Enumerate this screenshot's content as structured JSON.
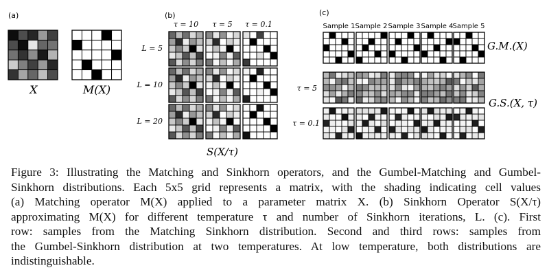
{
  "panels": {
    "a": {
      "label": "(a)",
      "captions": {
        "x": "X",
        "mx": "M(X)"
      },
      "x_matrix": [
        [
          0.95,
          0.7,
          0.85,
          0.4,
          0.75
        ],
        [
          0.7,
          0.95,
          0.1,
          0.6,
          0.55
        ],
        [
          0.55,
          0.8,
          0.45,
          0.9,
          0.3
        ],
        [
          0.2,
          0.5,
          0.75,
          0.4,
          0.85
        ],
        [
          0.8,
          0.35,
          0.6,
          0.25,
          0.7
        ]
      ],
      "mx_perm": [
        3,
        0,
        4,
        1,
        2
      ]
    },
    "b": {
      "label": "(b)",
      "tau_labels": [
        "τ = 10",
        "τ = 5",
        "τ = 0.1"
      ],
      "L_labels": [
        "L = 5",
        "L = 10",
        "L = 20"
      ],
      "bottom_label": "S(X/τ)",
      "tau_values": [
        10,
        5,
        0.1
      ],
      "L_values": [
        5,
        10,
        20
      ]
    },
    "c": {
      "label": "(c)",
      "sample_labels": [
        "Sample 1",
        "Sample 2",
        "Sample 3",
        "Sample 4",
        "Sample 5"
      ],
      "row_labels": [
        "",
        "τ = 5",
        "τ = 0.1"
      ],
      "gm_label": "G.M.(X)",
      "gs_label": "G.S.(X, τ)",
      "perms": [
        [
          1,
          3,
          0,
          4,
          2
        ],
        [
          4,
          2,
          1,
          3,
          0
        ],
        [
          3,
          1,
          4,
          0,
          2
        ],
        [
          1,
          4,
          2,
          0,
          3
        ],
        [
          2,
          0,
          3,
          4,
          1
        ]
      ]
    }
  },
  "caption": {
    "lines": [
      "Figure 3: Illustrating the Matching and Sinkhorn operators, and the Gumbel-Matching and Gumbel-",
      "Sinkhorn distributions. Each 5x5 grid represents a matrix, with the shading indicating cell values",
      "(a) Matching operator M(X) applied to a parameter matrix X. (b) Sinkhorn Operator S(X/τ)",
      "approximating M(X) for different temperature τ and number of Sinkhorn iterations, L. (c). First",
      "row: samples from the Matching Sinkhorn distribution. Second and third rows: samples from",
      "the Gumbel-Sinkhorn distribution at two temperatures. At low temperature, both distributions are",
      "indistinguishable."
    ]
  }
}
